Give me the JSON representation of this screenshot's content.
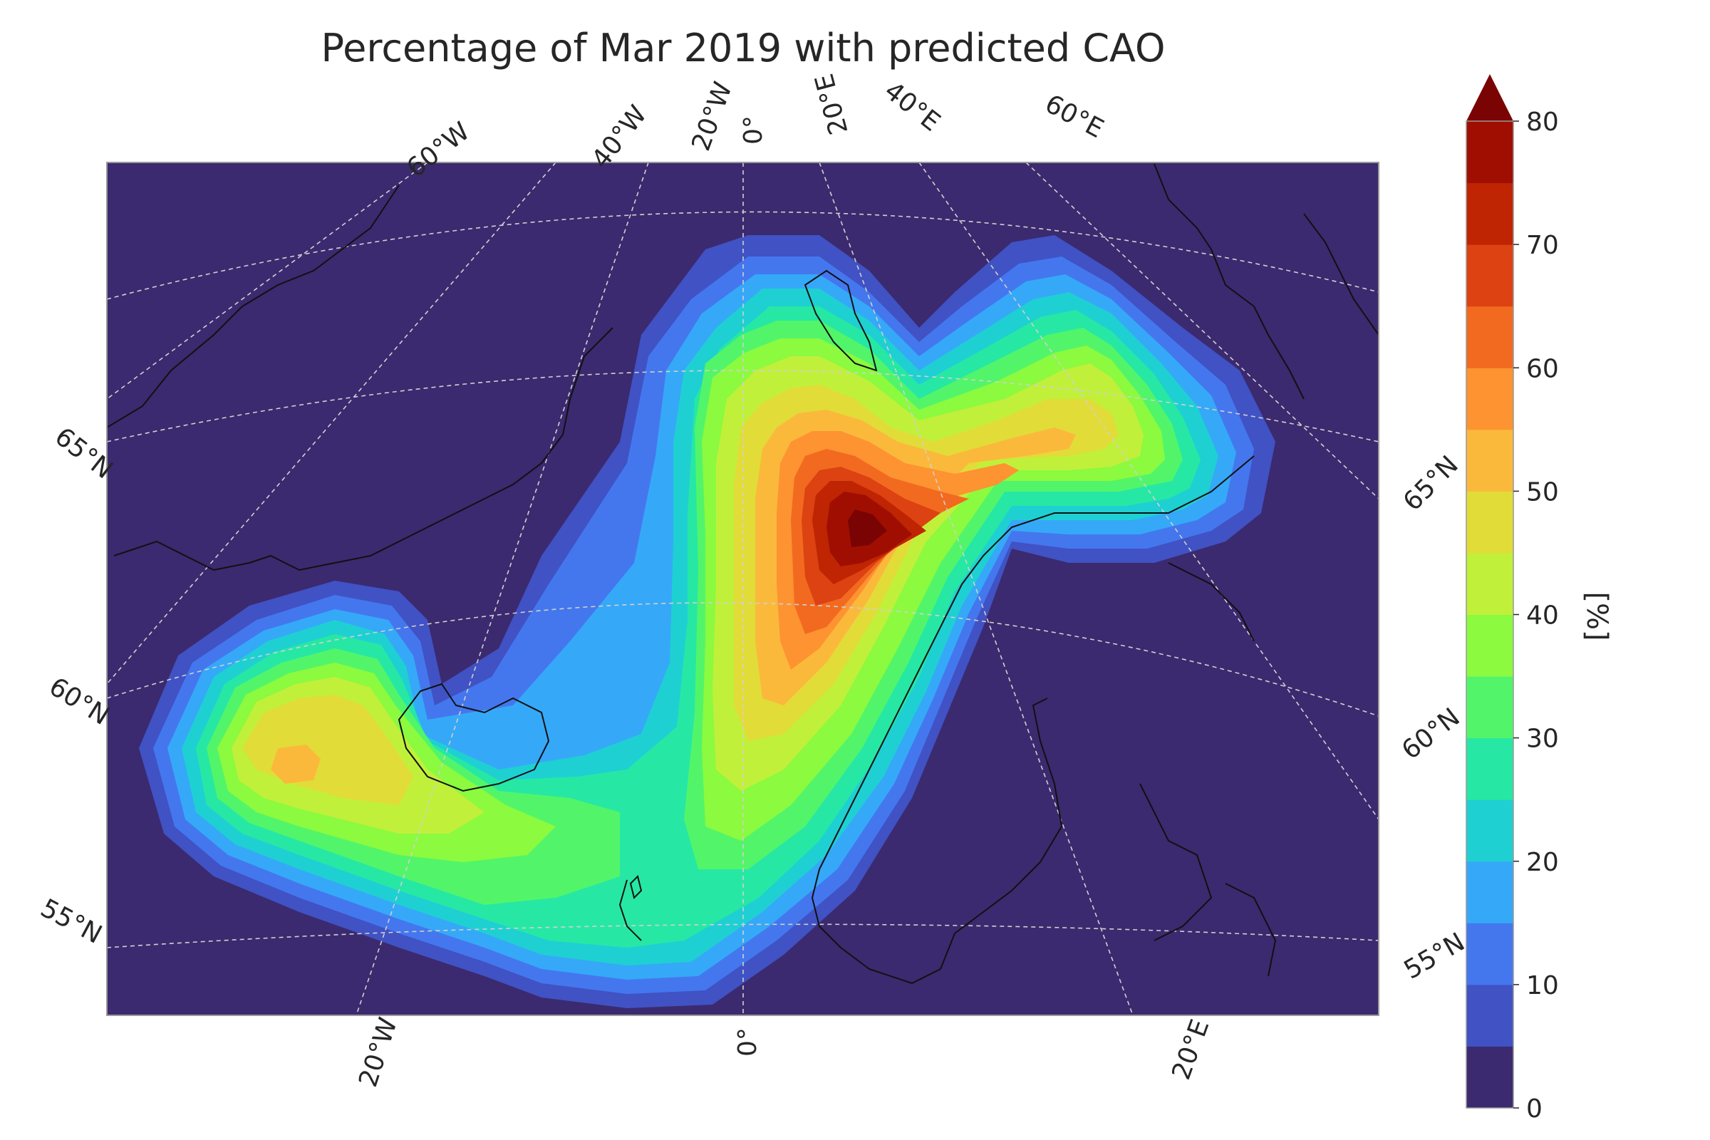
{
  "title": "Percentage of Mar 2019 with predicted CAO",
  "colorbar": {
    "label": "[%]",
    "min": 0,
    "max": 80,
    "tick_labels": [
      "0",
      "10",
      "20",
      "30",
      "40",
      "50",
      "60",
      "70",
      "80"
    ],
    "levels": [
      0,
      5,
      10,
      15,
      20,
      25,
      30,
      35,
      40,
      45,
      50,
      55,
      60,
      65,
      70,
      75,
      80
    ],
    "colors": [
      "#3b2a6f",
      "#4052c4",
      "#4477ee",
      "#36a8f8",
      "#1fd0d2",
      "#26e8a4",
      "#52f56a",
      "#8cfa3f",
      "#c1f03a",
      "#e2dc38",
      "#fbb93c",
      "#fd9331",
      "#f26a1f",
      "#dc4212",
      "#bf2403",
      "#a00e02",
      "#7a0403"
    ]
  },
  "map": {
    "projection": "polar stereographic",
    "region": "North Atlantic / Nordic Seas",
    "top_lon_labels": [
      "60°W",
      "40°W",
      "20°W",
      "0°",
      "20°E",
      "40°E",
      "60°E"
    ],
    "bottom_lon_labels": [
      "20°W",
      "0°",
      "20°E"
    ],
    "left_lat_labels": [
      "65°N",
      "60°N",
      "55°N"
    ],
    "right_lat_labels": [
      "65°N",
      "60°N",
      "55°N"
    ],
    "field": "percentage of time with predicted cold air outbreak",
    "max_region": "Norwegian Sea",
    "max_value_pct": 78
  }
}
